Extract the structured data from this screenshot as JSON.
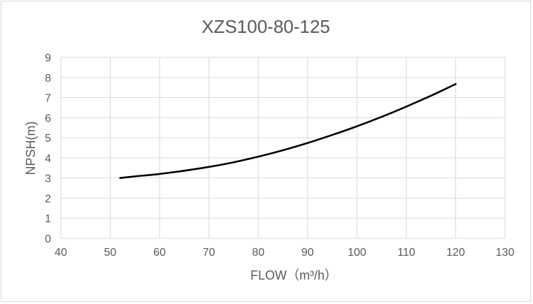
{
  "chart_data": {
    "type": "line",
    "title": "XZS100-80-125",
    "xlabel": "FLOW（m³/h）",
    "ylabel": "NPSH(m)",
    "xlim": [
      40,
      130
    ],
    "ylim": [
      0,
      9
    ],
    "xticks": [
      40,
      50,
      60,
      70,
      80,
      90,
      100,
      110,
      120,
      130
    ],
    "yticks": [
      0,
      1,
      2,
      3,
      4,
      5,
      6,
      7,
      8,
      9
    ],
    "grid": true,
    "legend": "none",
    "series": [
      {
        "color": "#000000",
        "x": [
          52,
          55,
          60,
          65,
          70,
          75,
          80,
          85,
          90,
          95,
          100,
          105,
          110,
          115,
          120
        ],
        "y": [
          3.0,
          3.08,
          3.2,
          3.36,
          3.55,
          3.78,
          4.06,
          4.38,
          4.74,
          5.14,
          5.57,
          6.04,
          6.55,
          7.09,
          7.67
        ]
      }
    ]
  }
}
